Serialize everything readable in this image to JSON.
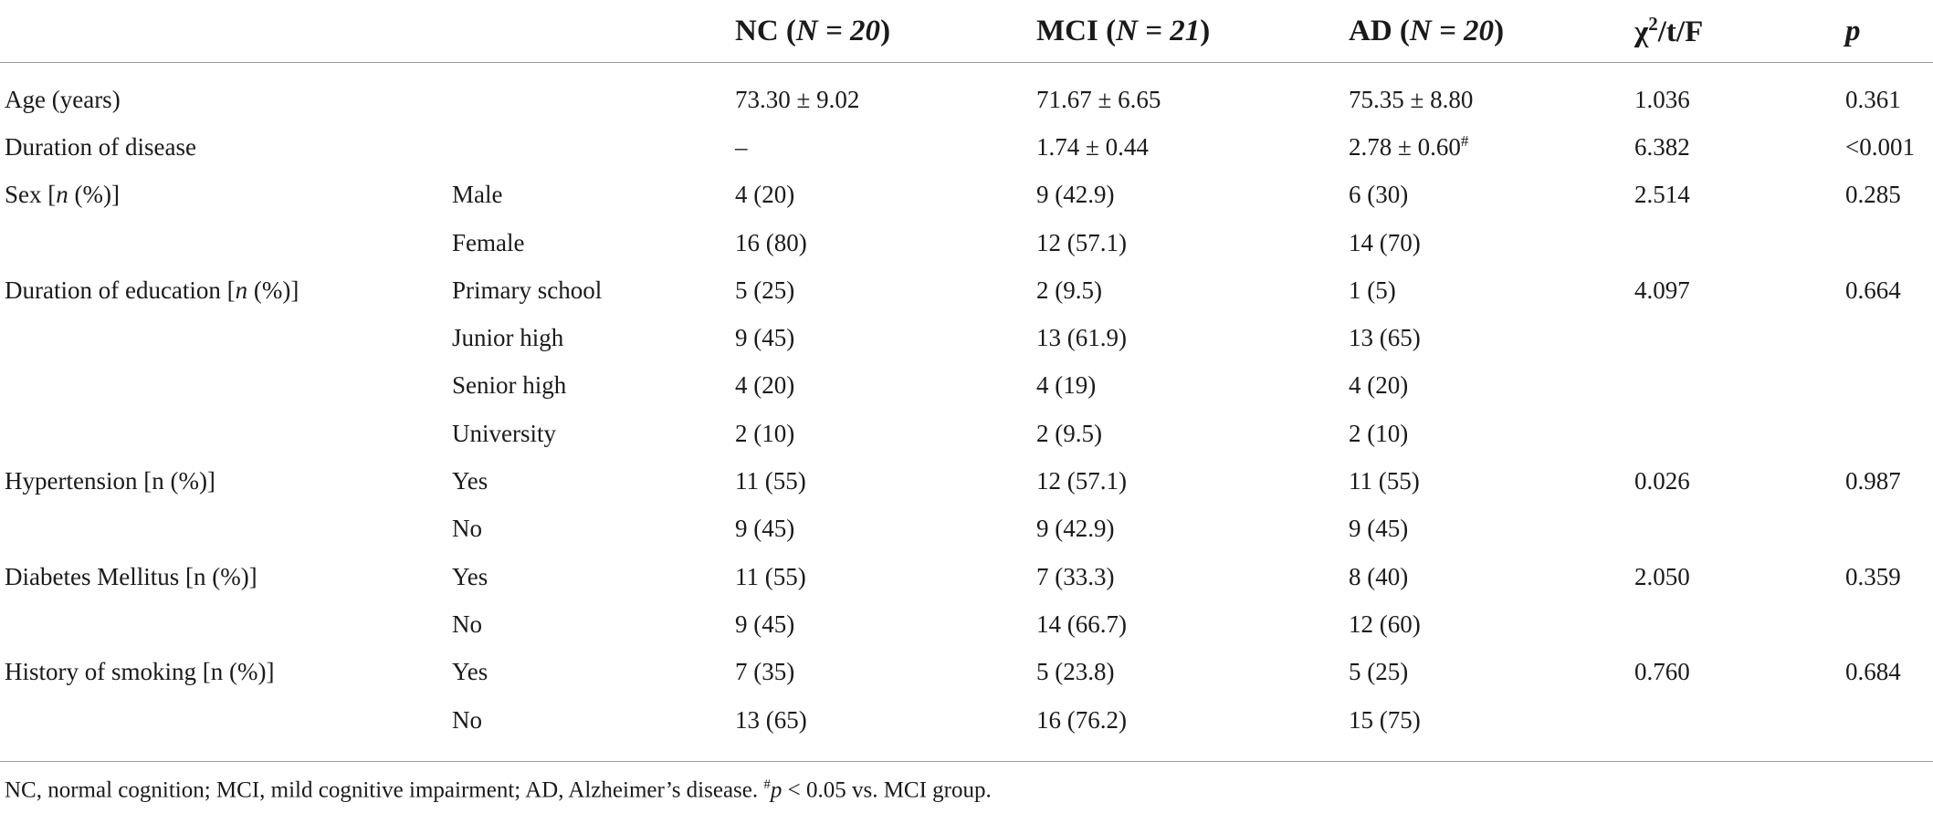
{
  "header": {
    "col_nc": "NC",
    "col_nc_n": "N = 20",
    "col_mci": "MCI",
    "col_mci_n": "N = 21",
    "col_ad": "AD",
    "col_ad_n": "N = 20",
    "col_stat_chi": "χ",
    "col_stat_sup": "2",
    "col_stat_rest": "/t/F",
    "col_p": "p"
  },
  "rows": [
    {
      "label": "Age (years)",
      "sub": "",
      "nc": "73.30 ± 9.02",
      "mci": "71.67 ± 6.65",
      "ad": "75.35 ± 8.80",
      "stat": "1.036",
      "p": "0.361"
    },
    {
      "label": "Duration of disease",
      "sub": "",
      "nc": "–",
      "mci": "1.74 ± 0.44",
      "ad": "2.78 ± 0.60",
      "ad_sup": "#",
      "stat": "6.382",
      "p": "<0.001"
    },
    {
      "label": "Sex [",
      "label_ital": "n",
      "label_end": " (%)]",
      "sub": "Male",
      "nc": "4 (20)",
      "mci": "9 (42.9)",
      "ad": "6 (30)",
      "stat": "2.514",
      "p": "0.285"
    },
    {
      "label": "",
      "sub": "Female",
      "nc": "16 (80)",
      "mci": "12 (57.1)",
      "ad": "14 (70)",
      "stat": "",
      "p": ""
    },
    {
      "label": "Duration of education [",
      "label_ital": "n",
      "label_end": " (%)]",
      "sub": "Primary school",
      "nc": "5 (25)",
      "mci": "2 (9.5)",
      "ad": "1 (5)",
      "stat": "4.097",
      "p": "0.664"
    },
    {
      "label": "",
      "sub": "Junior high",
      "nc": "9 (45)",
      "mci": "13 (61.9)",
      "ad": "13 (65)",
      "stat": "",
      "p": ""
    },
    {
      "label": "",
      "sub": "Senior high",
      "nc": "4 (20)",
      "mci": "4 (19)",
      "ad": "4 (20)",
      "stat": "",
      "p": ""
    },
    {
      "label": "",
      "sub": "University",
      "nc": "2 (10)",
      "mci": "2 (9.5)",
      "ad": "2 (10)",
      "stat": "",
      "p": ""
    },
    {
      "label": "Hypertension [n (%)]",
      "sub": "Yes",
      "nc": "11 (55)",
      "mci": "12 (57.1)",
      "ad": "11 (55)",
      "stat": "0.026",
      "p": "0.987"
    },
    {
      "label": "",
      "sub": "No",
      "nc": "9 (45)",
      "mci": "9 (42.9)",
      "ad": "9 (45)",
      "stat": "",
      "p": ""
    },
    {
      "label": "Diabetes Mellitus [n (%)]",
      "sub": "Yes",
      "nc": "11 (55)",
      "mci": "7 (33.3)",
      "ad": "8 (40)",
      "stat": "2.050",
      "p": "0.359"
    },
    {
      "label": "",
      "sub": "No",
      "nc": "9 (45)",
      "mci": "14 (66.7)",
      "ad": "12 (60)",
      "stat": "",
      "p": ""
    },
    {
      "label": "History of smoking [n (%)]",
      "sub": "Yes",
      "nc": "7 (35)",
      "mci": "5 (23.8)",
      "ad": "5 (25)",
      "stat": "0.760",
      "p": "0.684"
    },
    {
      "label": "",
      "sub": "No",
      "nc": "13 (65)",
      "mci": "16 (76.2)",
      "ad": "15 (75)",
      "stat": "",
      "p": ""
    }
  ],
  "footnote": {
    "text": "NC, normal cognition; MCI, mild cognitive impairment; AD, Alzheimer’s disease. ",
    "sup": "#",
    "p_ital": "p",
    "rest": " < 0.05 vs. MCI group."
  }
}
